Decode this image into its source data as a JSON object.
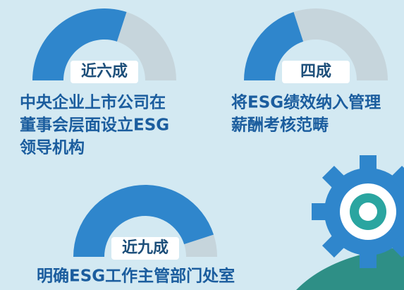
{
  "items": [
    {
      "label": "近六成",
      "value": 60,
      "lines": [
        "中央企业上市公司在",
        "董事会层面设立ESG",
        "领导机构"
      ]
    },
    {
      "label": "四成",
      "value": 40,
      "lines": [
        "将ESG绩效纳入管理",
        "薪酬考核范畴"
      ]
    },
    {
      "label": "近九成",
      "value": 90,
      "lines": [
        "明确ESG工作主管部门处室"
      ]
    }
  ]
}
